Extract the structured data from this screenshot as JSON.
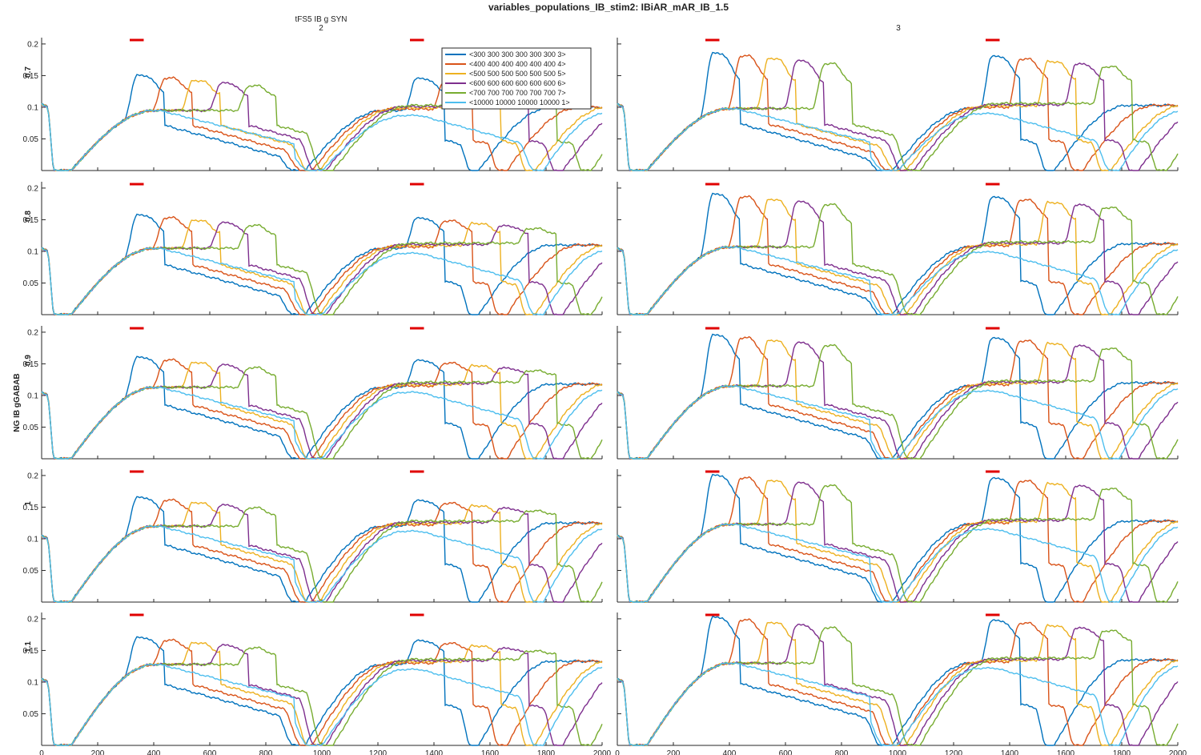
{
  "figure": {
    "title": "variables_populations_IB_stim2: IBiAR_mAR_IB_1.5",
    "y_group_label": "NG IB gGABAB"
  },
  "chart_data": {
    "type": "line",
    "title": "variables_populations_IB_stim2: IBiAR_mAR_IB_1.5",
    "xlim": [
      0,
      2000
    ],
    "ylim": [
      0,
      0.21
    ],
    "xticks": [
      0,
      200,
      400,
      600,
      800,
      1000,
      1200,
      1400,
      1600,
      1800,
      2000
    ],
    "yticks": [
      0.05,
      0.1,
      0.15,
      0.2
    ],
    "ytick_labels": [
      "0.05",
      "0.1",
      "0.15",
      "0.2"
    ],
    "grid": false,
    "legend_position": "top-right",
    "columns": [
      {
        "title_line1": "tFS5 IB g SYN",
        "title_line2": "2"
      },
      {
        "title_line1": "",
        "title_line2": "3"
      }
    ],
    "rows": [
      "0.7",
      "0.8",
      "0.9",
      "1",
      "1.1"
    ],
    "stimulus_marks": [
      [
        300,
        350
      ],
      [
        1300,
        1350
      ]
    ],
    "stimulus_color": "#e00000",
    "series": [
      {
        "name": "<300 300 300 300 300 300 3>",
        "color": "#0072BD",
        "onset": 300,
        "onset2": 1300
      },
      {
        "name": "<400 400 400 400 400 400 4>",
        "color": "#D95319",
        "onset": 400,
        "onset2": 1400
      },
      {
        "name": "<500 500 500 500 500 500 5>",
        "color": "#EDB120",
        "onset": 500,
        "onset2": 1500
      },
      {
        "name": "<600 600 600 600 600 600 6>",
        "color": "#7E2F8E",
        "onset": 600,
        "onset2": 1600
      },
      {
        "name": "<700 700 700 700 700 700 7>",
        "color": "#77AC30",
        "onset": 700,
        "onset2": 1700
      },
      {
        "name": "<10000 10000 10000 10000 1>",
        "color": "#4DBEEE",
        "onset": null,
        "onset2": null
      }
    ],
    "panels": [
      {
        "row": "0.7",
        "col": "2",
        "plateau": 0.095,
        "peak": 0.15
      },
      {
        "row": "0.7",
        "col": "3",
        "plateau": 0.098,
        "peak": 0.185
      },
      {
        "row": "0.8",
        "col": "2",
        "plateau": 0.105,
        "peak": 0.157
      },
      {
        "row": "0.8",
        "col": "3",
        "plateau": 0.107,
        "peak": 0.19
      },
      {
        "row": "0.9",
        "col": "2",
        "plateau": 0.113,
        "peak": 0.16
      },
      {
        "row": "0.9",
        "col": "3",
        "plateau": 0.115,
        "peak": 0.195
      },
      {
        "row": "1",
        "col": "2",
        "plateau": 0.12,
        "peak": 0.165
      },
      {
        "row": "1",
        "col": "3",
        "plateau": 0.123,
        "peak": 0.2
      },
      {
        "row": "1.1",
        "col": "2",
        "plateau": 0.128,
        "peak": 0.17
      },
      {
        "row": "1.1",
        "col": "3",
        "plateau": 0.13,
        "peak": 0.202
      }
    ]
  }
}
